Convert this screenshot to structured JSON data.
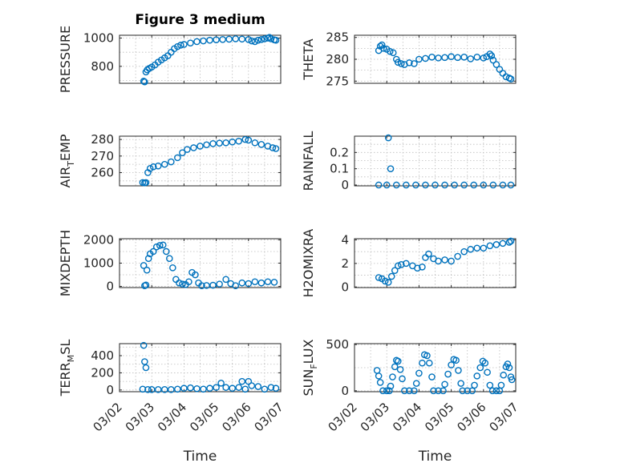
{
  "chart_data": {
    "type": "scatter",
    "title": "Figure 3 medium",
    "marker_color": "#0072BD",
    "xlabel": "Time",
    "x_ticks": [
      "03/02",
      "03/03",
      "03/04",
      "03/05",
      "03/06",
      "03/07"
    ],
    "x_range_days": [
      0,
      5
    ],
    "panels": [
      {
        "id": "pressure",
        "ylabel": "PRESSURE",
        "yticks": [
          800,
          1000
        ],
        "ylim": [
          680,
          1020
        ],
        "points": [
          [
            0.75,
            695
          ],
          [
            0.78,
            690
          ],
          [
            0.82,
            760
          ],
          [
            0.86,
            775
          ],
          [
            0.92,
            785
          ],
          [
            1.0,
            795
          ],
          [
            1.1,
            810
          ],
          [
            1.2,
            830
          ],
          [
            1.3,
            845
          ],
          [
            1.4,
            860
          ],
          [
            1.5,
            875
          ],
          [
            1.6,
            900
          ],
          [
            1.7,
            925
          ],
          [
            1.8,
            940
          ],
          [
            1.9,
            950
          ],
          [
            2.0,
            955
          ],
          [
            2.2,
            965
          ],
          [
            2.4,
            975
          ],
          [
            2.6,
            980
          ],
          [
            2.8,
            985
          ],
          [
            3.0,
            988
          ],
          [
            3.2,
            990
          ],
          [
            3.4,
            992
          ],
          [
            3.6,
            995
          ],
          [
            3.8,
            993
          ],
          [
            4.0,
            990
          ],
          [
            4.1,
            980
          ],
          [
            4.2,
            975
          ],
          [
            4.3,
            985
          ],
          [
            4.4,
            990
          ],
          [
            4.5,
            995
          ],
          [
            4.6,
            1000
          ],
          [
            4.65,
            1005
          ],
          [
            4.7,
            995
          ],
          [
            4.8,
            988
          ],
          [
            4.85,
            985
          ]
        ]
      },
      {
        "id": "theta",
        "ylabel": "THETA",
        "yticks": [
          275,
          280,
          285
        ],
        "ylim": [
          274.5,
          285.5
        ],
        "points": [
          [
            0.75,
            282
          ],
          [
            0.8,
            283
          ],
          [
            0.85,
            283.3
          ],
          [
            0.9,
            282.5
          ],
          [
            1.0,
            282.3
          ],
          [
            1.1,
            281.8
          ],
          [
            1.2,
            281.5
          ],
          [
            1.3,
            280
          ],
          [
            1.35,
            279.3
          ],
          [
            1.45,
            279
          ],
          [
            1.55,
            278.8
          ],
          [
            1.7,
            279.2
          ],
          [
            1.85,
            279
          ],
          [
            2.0,
            280
          ],
          [
            2.2,
            280.2
          ],
          [
            2.4,
            280.5
          ],
          [
            2.6,
            280.3
          ],
          [
            2.8,
            280.4
          ],
          [
            3.0,
            280.6
          ],
          [
            3.2,
            280.4
          ],
          [
            3.4,
            280.5
          ],
          [
            3.6,
            280.1
          ],
          [
            3.8,
            280.5
          ],
          [
            4.0,
            280.3
          ],
          [
            4.1,
            280.6
          ],
          [
            4.2,
            281.2
          ],
          [
            4.25,
            280.8
          ],
          [
            4.3,
            279.8
          ],
          [
            4.4,
            278.8
          ],
          [
            4.5,
            277.7
          ],
          [
            4.6,
            276.8
          ],
          [
            4.7,
            276
          ],
          [
            4.8,
            275.7
          ],
          [
            4.85,
            275.5
          ]
        ]
      },
      {
        "id": "air_temp",
        "ylabel_main": "AIR",
        "ylabel_sub": "T",
        "ylabel_rest": "EMP",
        "yticks": [
          260,
          270,
          280
        ],
        "ylim": [
          252,
          282
        ],
        "points": [
          [
            0.72,
            254
          ],
          [
            0.78,
            253.8
          ],
          [
            0.82,
            254
          ],
          [
            0.88,
            260
          ],
          [
            0.95,
            262.5
          ],
          [
            1.05,
            263.5
          ],
          [
            1.2,
            264
          ],
          [
            1.4,
            265
          ],
          [
            1.6,
            266.5
          ],
          [
            1.8,
            269
          ],
          [
            1.95,
            272
          ],
          [
            2.1,
            274
          ],
          [
            2.3,
            275
          ],
          [
            2.5,
            276
          ],
          [
            2.7,
            276.8
          ],
          [
            2.9,
            277.5
          ],
          [
            3.1,
            277.8
          ],
          [
            3.3,
            278
          ],
          [
            3.5,
            278.5
          ],
          [
            3.7,
            279
          ],
          [
            3.9,
            280
          ],
          [
            4.0,
            279.6
          ],
          [
            4.2,
            278
          ],
          [
            4.4,
            277
          ],
          [
            4.6,
            276
          ],
          [
            4.75,
            275
          ],
          [
            4.85,
            274.5
          ]
        ]
      },
      {
        "id": "rainfall",
        "ylabel": "RAINFALL",
        "yticks": [
          0,
          0.1,
          0.2
        ],
        "ylim": [
          -0.005,
          0.3
        ],
        "points": [
          [
            0.75,
            0
          ],
          [
            1.0,
            0
          ],
          [
            1.3,
            0
          ],
          [
            1.6,
            0
          ],
          [
            1.9,
            0
          ],
          [
            2.2,
            0
          ],
          [
            2.5,
            0
          ],
          [
            2.8,
            0
          ],
          [
            3.1,
            0
          ],
          [
            3.4,
            0
          ],
          [
            3.7,
            0
          ],
          [
            4.0,
            0
          ],
          [
            4.3,
            0
          ],
          [
            4.6,
            0
          ],
          [
            4.85,
            0
          ],
          [
            1.12,
            0.1
          ],
          [
            1.05,
            0.29
          ]
        ]
      },
      {
        "id": "mixdepth",
        "ylabel": "MIXDEPTH",
        "yticks": [
          0,
          1000,
          2000
        ],
        "ylim": [
          -50,
          2050
        ],
        "points": [
          [
            0.75,
            900
          ],
          [
            0.78,
            30
          ],
          [
            0.82,
            60
          ],
          [
            0.85,
            700
          ],
          [
            0.9,
            1200
          ],
          [
            0.95,
            1400
          ],
          [
            1.05,
            1500
          ],
          [
            1.15,
            1700
          ],
          [
            1.25,
            1760
          ],
          [
            1.35,
            1780
          ],
          [
            1.45,
            1500
          ],
          [
            1.55,
            1200
          ],
          [
            1.65,
            800
          ],
          [
            1.75,
            300
          ],
          [
            1.85,
            150
          ],
          [
            1.95,
            100
          ],
          [
            2.05,
            80
          ],
          [
            2.15,
            200
          ],
          [
            2.25,
            600
          ],
          [
            2.35,
            500
          ],
          [
            2.45,
            150
          ],
          [
            2.55,
            30
          ],
          [
            2.7,
            40
          ],
          [
            2.9,
            50
          ],
          [
            3.1,
            100
          ],
          [
            3.3,
            300
          ],
          [
            3.45,
            120
          ],
          [
            3.6,
            30
          ],
          [
            3.8,
            150
          ],
          [
            4.0,
            120
          ],
          [
            4.2,
            200
          ],
          [
            4.4,
            150
          ],
          [
            4.6,
            200
          ],
          [
            4.8,
            180
          ]
        ]
      },
      {
        "id": "h2omixra",
        "ylabel": "H2OMIXRA",
        "yticks": [
          0,
          2,
          4
        ],
        "ylim": [
          -0.05,
          4.1
        ],
        "points": [
          [
            0.75,
            0.8
          ],
          [
            0.85,
            0.7
          ],
          [
            0.95,
            0.5
          ],
          [
            1.05,
            0.4
          ],
          [
            1.15,
            0.9
          ],
          [
            1.25,
            1.4
          ],
          [
            1.35,
            1.8
          ],
          [
            1.45,
            1.9
          ],
          [
            1.6,
            2.0
          ],
          [
            1.8,
            1.8
          ],
          [
            1.95,
            1.6
          ],
          [
            2.1,
            1.7
          ],
          [
            2.2,
            2.5
          ],
          [
            2.3,
            2.8
          ],
          [
            2.45,
            2.4
          ],
          [
            2.6,
            2.2
          ],
          [
            2.8,
            2.3
          ],
          [
            3.0,
            2.2
          ],
          [
            3.2,
            2.6
          ],
          [
            3.4,
            3.0
          ],
          [
            3.6,
            3.2
          ],
          [
            3.8,
            3.3
          ],
          [
            4.0,
            3.3
          ],
          [
            4.2,
            3.5
          ],
          [
            4.4,
            3.6
          ],
          [
            4.6,
            3.7
          ],
          [
            4.8,
            3.8
          ],
          [
            4.85,
            3.9
          ]
        ]
      },
      {
        "id": "terr_msl",
        "ylabel_main": "TERR",
        "ylabel_sub": "M",
        "ylabel_rest": "SL",
        "yticks": [
          0,
          200,
          400
        ],
        "ylim": [
          -20,
          540
        ],
        "points": [
          [
            0.72,
            10
          ],
          [
            0.75,
            520
          ],
          [
            0.78,
            330
          ],
          [
            0.82,
            260
          ],
          [
            0.88,
            5
          ],
          [
            1.0,
            5
          ],
          [
            1.2,
            5
          ],
          [
            1.4,
            5
          ],
          [
            1.6,
            5
          ],
          [
            1.8,
            10
          ],
          [
            2.0,
            20
          ],
          [
            2.2,
            25
          ],
          [
            2.4,
            15
          ],
          [
            2.6,
            10
          ],
          [
            2.8,
            20
          ],
          [
            3.0,
            30
          ],
          [
            3.15,
            80
          ],
          [
            3.3,
            30
          ],
          [
            3.5,
            20
          ],
          [
            3.7,
            30
          ],
          [
            3.8,
            100
          ],
          [
            3.9,
            10
          ],
          [
            4.0,
            100
          ],
          [
            4.1,
            50
          ],
          [
            4.3,
            40
          ],
          [
            4.5,
            10
          ],
          [
            4.7,
            30
          ],
          [
            4.85,
            20
          ]
        ]
      },
      {
        "id": "sun_flux",
        "ylabel_main": "SUN",
        "ylabel_sub": "F",
        "ylabel_rest": "LUX",
        "yticks": [
          0,
          500
        ],
        "ylim": [
          -10,
          510
        ],
        "points": [
          [
            0.7,
            220
          ],
          [
            0.75,
            160
          ],
          [
            0.8,
            90
          ],
          [
            0.88,
            0
          ],
          [
            1.0,
            0
          ],
          [
            1.08,
            0
          ],
          [
            1.12,
            50
          ],
          [
            1.18,
            150
          ],
          [
            1.25,
            260
          ],
          [
            1.3,
            330
          ],
          [
            1.35,
            320
          ],
          [
            1.42,
            230
          ],
          [
            1.48,
            130
          ],
          [
            1.55,
            0
          ],
          [
            1.7,
            0
          ],
          [
            1.85,
            0
          ],
          [
            1.92,
            80
          ],
          [
            2.0,
            190
          ],
          [
            2.1,
            300
          ],
          [
            2.17,
            390
          ],
          [
            2.25,
            380
          ],
          [
            2.32,
            300
          ],
          [
            2.4,
            150
          ],
          [
            2.45,
            0
          ],
          [
            2.6,
            0
          ],
          [
            2.75,
            0
          ],
          [
            2.8,
            70
          ],
          [
            2.9,
            180
          ],
          [
            3.0,
            280
          ],
          [
            3.08,
            340
          ],
          [
            3.15,
            330
          ],
          [
            3.22,
            220
          ],
          [
            3.3,
            80
          ],
          [
            3.35,
            0
          ],
          [
            3.5,
            0
          ],
          [
            3.65,
            0
          ],
          [
            3.72,
            60
          ],
          [
            3.8,
            160
          ],
          [
            3.9,
            250
          ],
          [
            3.98,
            320
          ],
          [
            4.05,
            300
          ],
          [
            4.12,
            200
          ],
          [
            4.2,
            60
          ],
          [
            4.28,
            0
          ],
          [
            4.4,
            0
          ],
          [
            4.5,
            0
          ],
          [
            4.55,
            60
          ],
          [
            4.62,
            170
          ],
          [
            4.7,
            260
          ],
          [
            4.75,
            290
          ],
          [
            4.8,
            250
          ],
          [
            4.85,
            150
          ],
          [
            4.88,
            120
          ]
        ]
      }
    ]
  }
}
